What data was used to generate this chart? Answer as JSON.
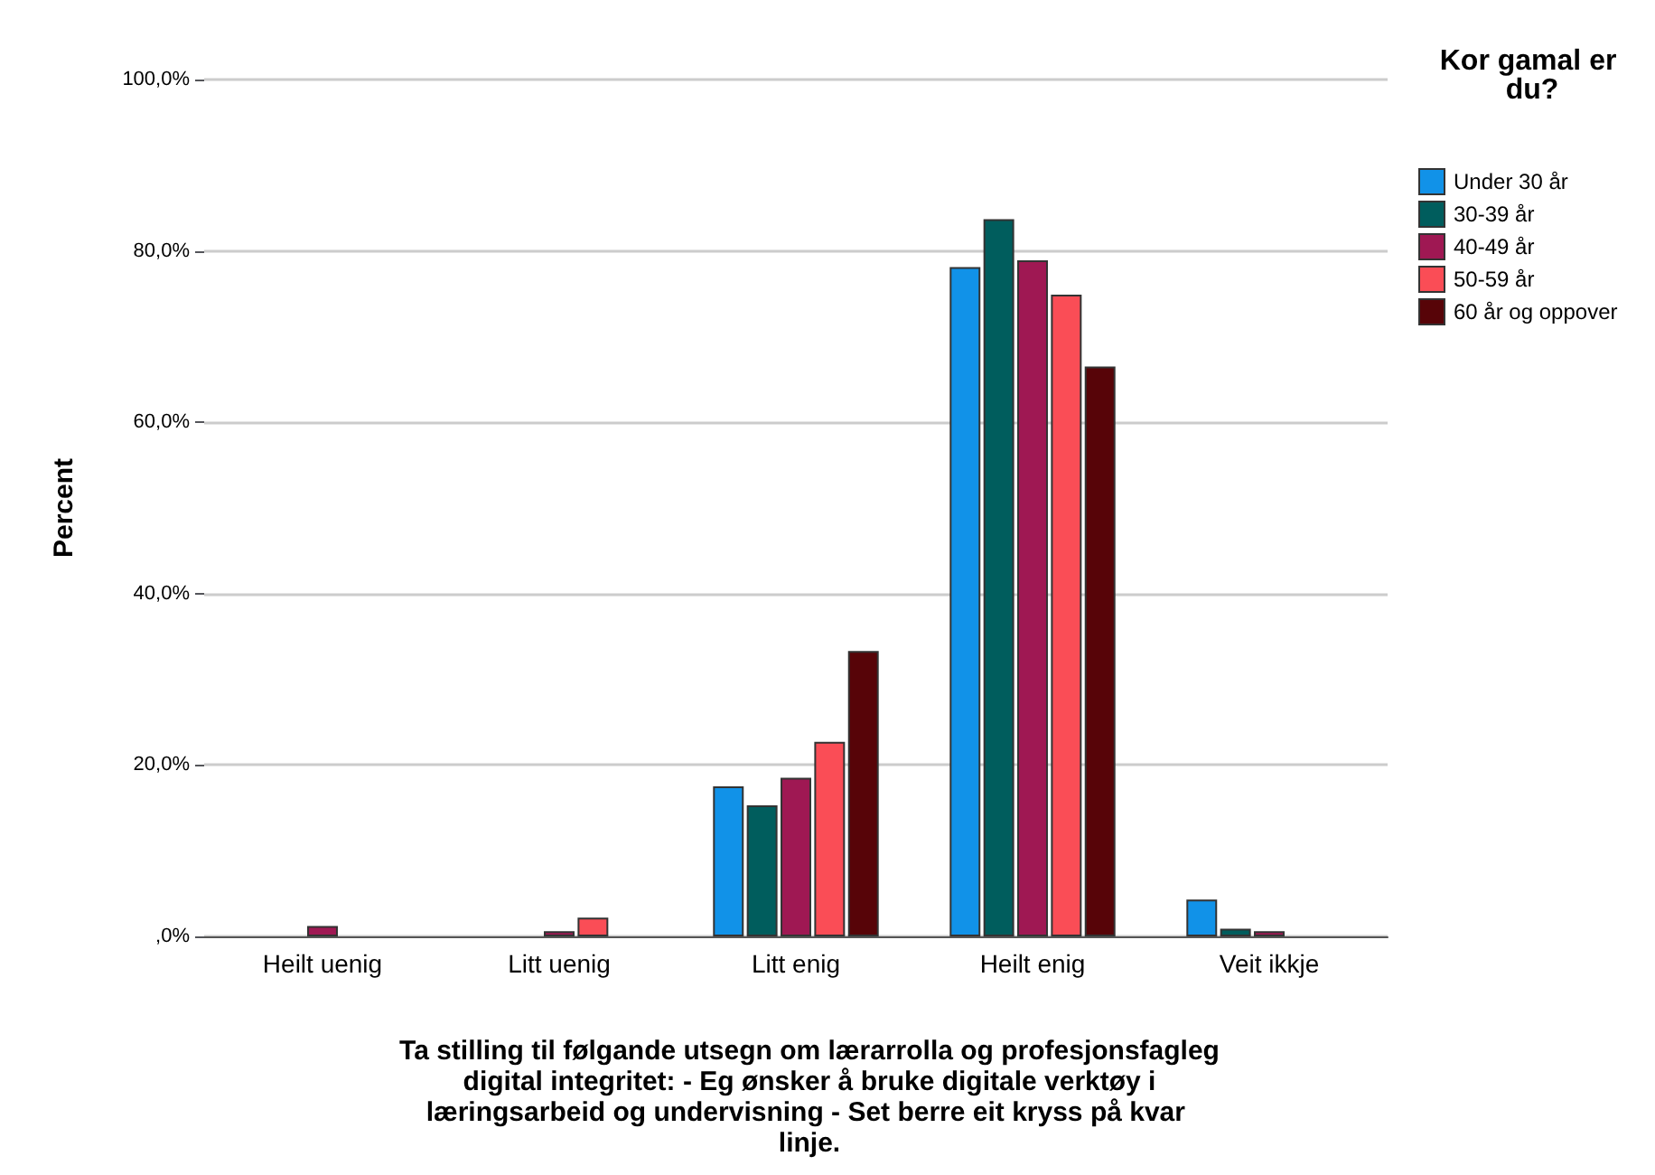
{
  "chart_data": {
    "type": "bar",
    "xlabel": "Ta stilling til følgande utsegn om lærarrolla og profesjonsfagleg digital integritet: - Eg ønsker å bruke digitale verktøy i læringsarbeid og undervisning - Set berre eit kryss på kvar linje.",
    "ylabel": "Percent",
    "legend_title": "Kor gamal er du?",
    "categories": [
      "Heilt uenig",
      "Litt uenig",
      "Litt enig",
      "Heilt enig",
      "Veit ikkje"
    ],
    "series": [
      {
        "name": "Under 30 år",
        "color": "#1192e8",
        "values": [
          0,
          0,
          17.5,
          78.1,
          4.3
        ]
      },
      {
        "name": "30-39 år",
        "color": "#005d5d",
        "values": [
          0,
          0,
          15.3,
          83.7,
          0.9
        ]
      },
      {
        "name": "40-49 år",
        "color": "#9f1853",
        "values": [
          1.2,
          0.6,
          18.5,
          78.9,
          0.6
        ]
      },
      {
        "name": "50-59 år",
        "color": "#fa4d56",
        "values": [
          0,
          2.2,
          22.7,
          74.9,
          0
        ]
      },
      {
        "name": "60 år og oppover",
        "color": "#570408",
        "values": [
          0,
          0,
          33.3,
          66.5,
          0
        ]
      }
    ],
    "ylim": [
      0,
      100
    ],
    "yticks": [
      {
        "value": 0,
        "label": ",0%"
      },
      {
        "value": 20,
        "label": "20,0%"
      },
      {
        "value": 40,
        "label": "40,0%"
      },
      {
        "value": 60,
        "label": "60,0%"
      },
      {
        "value": 80,
        "label": "80,0%"
      },
      {
        "value": 100,
        "label": "100,0%"
      }
    ],
    "grid": "y",
    "legend": "top right"
  }
}
